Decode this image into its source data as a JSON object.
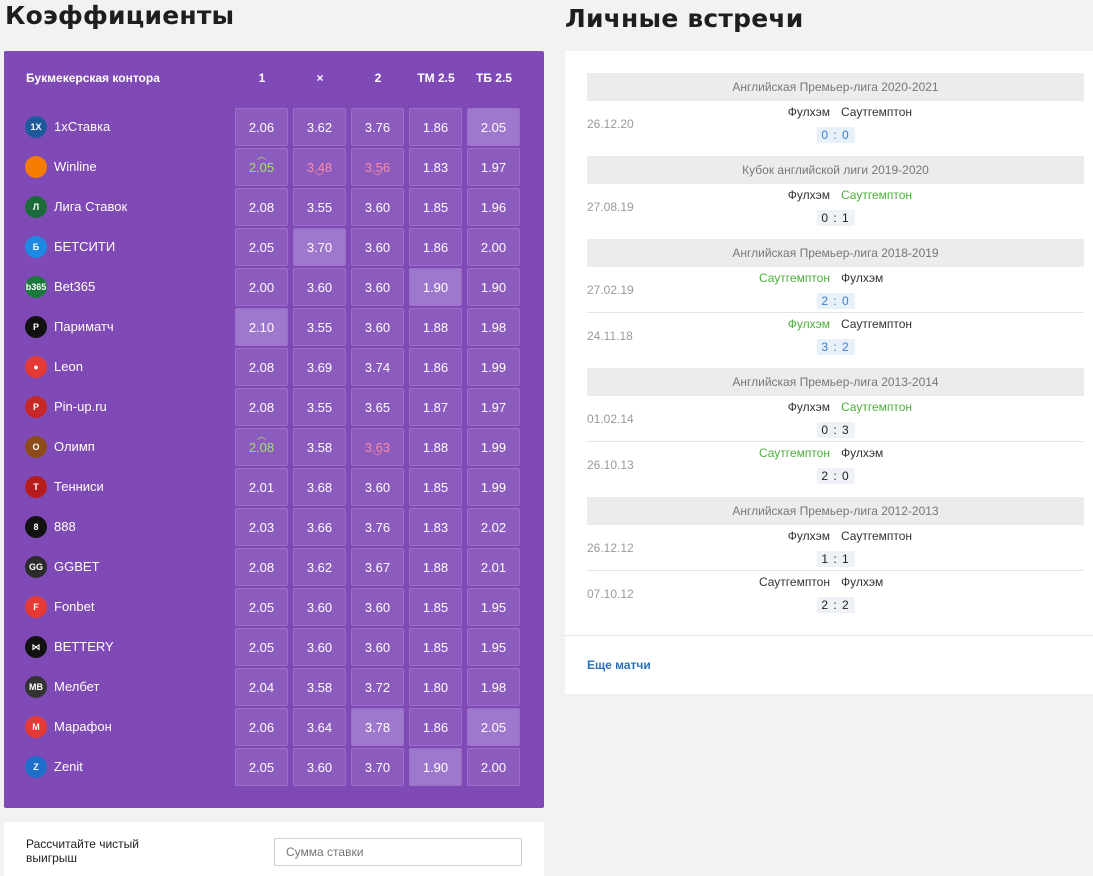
{
  "titles": {
    "odds": "Коэффициенты",
    "h2h": "Личные встречи"
  },
  "odds": {
    "headers": {
      "bookmaker": "Букмекерская контора",
      "c1": "1",
      "cx": "×",
      "c2": "2",
      "tm": "ТМ 2.5",
      "tb": "ТБ 2.5"
    },
    "rows": [
      {
        "name": "1xСтавка",
        "logo_color": "#1d5a9c",
        "logo_text": "1X",
        "vals": [
          "2.06",
          "3.62",
          "3.76",
          "1.86",
          "2.05"
        ],
        "hl": [
          false,
          false,
          false,
          false,
          true
        ],
        "trend": [
          "",
          "",
          "",
          "",
          ""
        ]
      },
      {
        "name": "Winline",
        "logo_color": "#f57c00",
        "logo_text": "",
        "vals": [
          "2.05",
          "3.48",
          "3.56",
          "1.83",
          "1.97"
        ],
        "hl": [
          false,
          false,
          false,
          false,
          false
        ],
        "trend": [
          "up",
          "down",
          "down",
          "",
          ""
        ]
      },
      {
        "name": "Лига Ставок",
        "logo_color": "#1b6b3a",
        "logo_text": "Л",
        "vals": [
          "2.08",
          "3.55",
          "3.60",
          "1.85",
          "1.96"
        ],
        "hl": [
          false,
          false,
          false,
          false,
          false
        ],
        "trend": [
          "",
          "",
          "",
          "",
          ""
        ]
      },
      {
        "name": "БЕТСИТИ",
        "logo_color": "#1e88e5",
        "logo_text": "Б",
        "vals": [
          "2.05",
          "3.70",
          "3.60",
          "1.86",
          "2.00"
        ],
        "hl": [
          false,
          true,
          false,
          false,
          false
        ],
        "trend": [
          "",
          "",
          "",
          "",
          ""
        ]
      },
      {
        "name": "Bet365",
        "logo_color": "#1a7a3c",
        "logo_text": "b365",
        "vals": [
          "2.00",
          "3.60",
          "3.60",
          "1.90",
          "1.90"
        ],
        "hl": [
          false,
          false,
          false,
          true,
          false
        ],
        "trend": [
          "",
          "",
          "",
          "",
          ""
        ]
      },
      {
        "name": "Париматч",
        "logo_color": "#111111",
        "logo_text": "P",
        "vals": [
          "2.10",
          "3.55",
          "3.60",
          "1.88",
          "1.98"
        ],
        "hl": [
          true,
          false,
          false,
          false,
          false
        ],
        "trend": [
          "",
          "",
          "",
          "",
          ""
        ]
      },
      {
        "name": "Leon",
        "logo_color": "#e53935",
        "logo_text": "●",
        "vals": [
          "2.08",
          "3.69",
          "3.74",
          "1.86",
          "1.99"
        ],
        "hl": [
          false,
          false,
          false,
          false,
          false
        ],
        "trend": [
          "",
          "",
          "",
          "",
          ""
        ]
      },
      {
        "name": "Pin-up.ru",
        "logo_color": "#c62828",
        "logo_text": "P",
        "vals": [
          "2.08",
          "3.55",
          "3.65",
          "1.87",
          "1.97"
        ],
        "hl": [
          false,
          false,
          false,
          false,
          false
        ],
        "trend": [
          "",
          "",
          "",
          "",
          ""
        ]
      },
      {
        "name": "Олимп",
        "logo_color": "#8d4a1a",
        "logo_text": "O",
        "vals": [
          "2.08",
          "3.58",
          "3.63",
          "1.88",
          "1.99"
        ],
        "hl": [
          false,
          false,
          false,
          false,
          false
        ],
        "trend": [
          "up",
          "",
          "down",
          "",
          ""
        ]
      },
      {
        "name": "Тенниси",
        "logo_color": "#b71c1c",
        "logo_text": "Т",
        "vals": [
          "2.01",
          "3.68",
          "3.60",
          "1.85",
          "1.99"
        ],
        "hl": [
          false,
          false,
          false,
          false,
          false
        ],
        "trend": [
          "",
          "",
          "",
          "",
          ""
        ]
      },
      {
        "name": "888",
        "logo_color": "#111111",
        "logo_text": "8",
        "vals": [
          "2.03",
          "3.66",
          "3.76",
          "1.83",
          "2.02"
        ],
        "hl": [
          false,
          false,
          false,
          false,
          false
        ],
        "trend": [
          "",
          "",
          "",
          "",
          ""
        ]
      },
      {
        "name": "GGBET",
        "logo_color": "#2b2b2b",
        "logo_text": "GG",
        "vals": [
          "2.08",
          "3.62",
          "3.67",
          "1.88",
          "2.01"
        ],
        "hl": [
          false,
          false,
          false,
          false,
          false
        ],
        "trend": [
          "",
          "",
          "",
          "",
          ""
        ]
      },
      {
        "name": "Fonbet",
        "logo_color": "#e53935",
        "logo_text": "F",
        "vals": [
          "2.05",
          "3.60",
          "3.60",
          "1.85",
          "1.95"
        ],
        "hl": [
          false,
          false,
          false,
          false,
          false
        ],
        "trend": [
          "",
          "",
          "",
          "",
          ""
        ]
      },
      {
        "name": "BETTERY",
        "logo_color": "#111111",
        "logo_text": "⋈",
        "vals": [
          "2.05",
          "3.60",
          "3.60",
          "1.85",
          "1.95"
        ],
        "hl": [
          false,
          false,
          false,
          false,
          false
        ],
        "trend": [
          "",
          "",
          "",
          "",
          ""
        ]
      },
      {
        "name": "Мелбет",
        "logo_color": "#333333",
        "logo_text": "MB",
        "vals": [
          "2.04",
          "3.58",
          "3.72",
          "1.80",
          "1.98"
        ],
        "hl": [
          false,
          false,
          false,
          false,
          false
        ],
        "trend": [
          "",
          "",
          "",
          "",
          ""
        ]
      },
      {
        "name": "Марафон",
        "logo_color": "#e53935",
        "logo_text": "M",
        "vals": [
          "2.06",
          "3.64",
          "3.78",
          "1.86",
          "2.05"
        ],
        "hl": [
          false,
          false,
          true,
          false,
          true
        ],
        "trend": [
          "",
          "",
          "",
          "",
          ""
        ]
      },
      {
        "name": "Zenit",
        "logo_color": "#1e6fc9",
        "logo_text": "Z",
        "vals": [
          "2.05",
          "3.60",
          "3.70",
          "1.90",
          "2.00"
        ],
        "hl": [
          false,
          false,
          false,
          true,
          false
        ],
        "trend": [
          "",
          "",
          "",
          "",
          ""
        ]
      }
    ]
  },
  "calc": {
    "label": "Рассчитайте чистый выигрыш",
    "placeholder": "Сумма ставки"
  },
  "h2h": {
    "groups": [
      {
        "league": "Английская Премьер-лига 2020-2021",
        "matches": [
          {
            "date": "26.12.20",
            "home": "Фулхэм",
            "away": "Саутгемптон",
            "score": "0 : 0",
            "winner": "",
            "blue": true
          }
        ]
      },
      {
        "league": "Кубок английской лиги 2019-2020",
        "matches": [
          {
            "date": "27.08.19",
            "home": "Фулхэм",
            "away": "Саутгемптон",
            "score": "0 : 1",
            "winner": "away",
            "blue": false
          }
        ]
      },
      {
        "league": "Английская Премьер-лига 2018-2019",
        "matches": [
          {
            "date": "27.02.19",
            "home": "Саутгемптон",
            "away": "Фулхэм",
            "score": "2 : 0",
            "winner": "home",
            "blue": true
          },
          {
            "date": "24.11.18",
            "home": "Фулхэм",
            "away": "Саутгемптон",
            "score": "3 : 2",
            "winner": "home",
            "blue": true
          }
        ]
      },
      {
        "league": "Английская Премьер-лига 2013-2014",
        "matches": [
          {
            "date": "01.02.14",
            "home": "Фулхэм",
            "away": "Саутгемптон",
            "score": "0 : 3",
            "winner": "away",
            "blue": false
          },
          {
            "date": "26.10.13",
            "home": "Саутгемптон",
            "away": "Фулхэм",
            "score": "2 : 0",
            "winner": "home",
            "blue": false
          }
        ]
      },
      {
        "league": "Английская Премьер-лига 2012-2013",
        "matches": [
          {
            "date": "26.12.12",
            "home": "Фулхэм",
            "away": "Саутгемптон",
            "score": "1 : 1",
            "winner": "",
            "blue": false
          },
          {
            "date": "07.10.12",
            "home": "Саутгемптон",
            "away": "Фулхэм",
            "score": "2 : 2",
            "winner": "",
            "blue": false
          }
        ]
      }
    ],
    "more": "Еще матчи"
  }
}
